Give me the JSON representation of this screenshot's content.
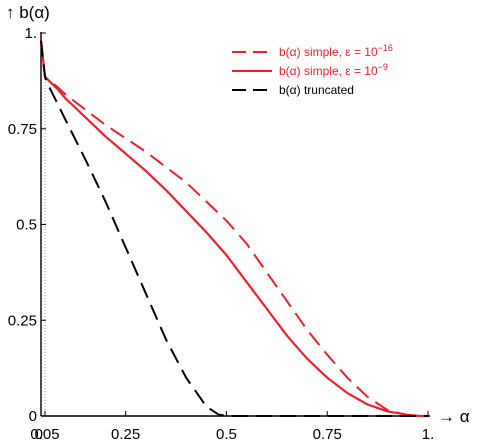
{
  "chart_data": {
    "type": "line",
    "title": "",
    "xlabel": "→ α",
    "ylabel": "↑ b(α)",
    "xlim": [
      0.04,
      1.0
    ],
    "ylim": [
      0,
      1.0
    ],
    "x_ticks": [
      {
        "value": 0.05,
        "label": "0.05"
      },
      {
        "value": 0.25,
        "label": "0.25"
      },
      {
        "value": 0.5,
        "label": "0.5"
      },
      {
        "value": 0.75,
        "label": "0.75"
      },
      {
        "value": 1.0,
        "label": "1."
      }
    ],
    "x_axis_start_label": "0",
    "y_ticks": [
      {
        "value": 0,
        "label": "0"
      },
      {
        "value": 0.25,
        "label": "0.25"
      },
      {
        "value": 0.5,
        "label": "0.5"
      },
      {
        "value": 0.75,
        "label": "0.75"
      },
      {
        "value": 1.0,
        "label": "1."
      }
    ],
    "grid": false,
    "reference_line": {
      "x": 0.05,
      "style": "dotted",
      "color": "#999999"
    },
    "legend": {
      "position": "top-right",
      "entries": [
        {
          "prefix": "b(α) simple, ε = 10",
          "exponent": "−16",
          "series_index": 0
        },
        {
          "prefix": "b(α) simple, ε = 10",
          "exponent": "−9",
          "series_index": 1
        },
        {
          "prefix": "b(α) truncated",
          "exponent": "",
          "series_index": 2
        }
      ]
    },
    "series": [
      {
        "color": "#e8222a",
        "dash": "dashed",
        "x": [
          0.04,
          0.05,
          0.08,
          0.1,
          0.15,
          0.2,
          0.25,
          0.3,
          0.35,
          0.4,
          0.45,
          0.5,
          0.55,
          0.6,
          0.65,
          0.7,
          0.75,
          0.8,
          0.85,
          0.9,
          0.95,
          0.98,
          1.0
        ],
        "y": [
          0.98,
          0.885,
          0.86,
          0.84,
          0.8,
          0.76,
          0.725,
          0.69,
          0.65,
          0.61,
          0.56,
          0.51,
          0.45,
          0.375,
          0.3,
          0.225,
          0.16,
          0.1,
          0.05,
          0.015,
          0.002,
          0.0,
          0.0
        ]
      },
      {
        "color": "#e8222a",
        "dash": "solid",
        "x": [
          0.04,
          0.05,
          0.08,
          0.1,
          0.15,
          0.2,
          0.25,
          0.3,
          0.35,
          0.4,
          0.45,
          0.5,
          0.55,
          0.6,
          0.65,
          0.7,
          0.75,
          0.8,
          0.85,
          0.9,
          0.95,
          0.98,
          1.0
        ],
        "y": [
          0.98,
          0.885,
          0.855,
          0.83,
          0.78,
          0.73,
          0.685,
          0.64,
          0.59,
          0.535,
          0.48,
          0.42,
          0.35,
          0.28,
          0.21,
          0.15,
          0.1,
          0.06,
          0.03,
          0.012,
          0.003,
          0.0,
          0.0
        ]
      },
      {
        "color": "#000000",
        "dash": "dashed",
        "x": [
          0.04,
          0.05,
          0.06,
          0.1,
          0.15,
          0.2,
          0.25,
          0.3,
          0.35,
          0.4,
          0.45,
          0.48,
          0.5,
          0.6,
          0.7,
          0.8,
          0.9,
          0.95,
          1.0
        ],
        "y": [
          0.98,
          0.885,
          0.86,
          0.775,
          0.67,
          0.56,
          0.44,
          0.32,
          0.2,
          0.1,
          0.025,
          0.004,
          0.0,
          0.0,
          0.0,
          0.0,
          0.0,
          0.0,
          0.0
        ]
      }
    ]
  }
}
